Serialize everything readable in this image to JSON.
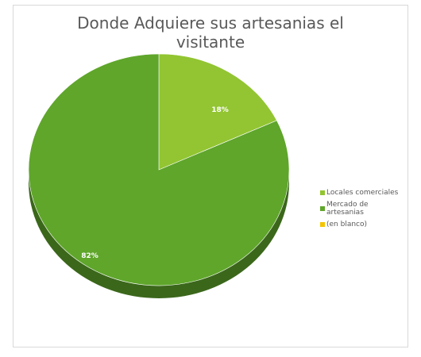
{
  "chart_data": {
    "type": "pie",
    "title": "Donde Adquiere sus artesanias el visitante",
    "title_lines": [
      "Donde Adquiere sus artesanias el",
      "visitante"
    ],
    "categories": [
      "Locales comerciales",
      "Mercado de artesanias",
      "(en blanco)"
    ],
    "values": [
      18,
      82,
      0
    ],
    "data_labels": [
      "18%",
      "82%",
      ""
    ],
    "colors": [
      "#92c531",
      "#5fa62b",
      "#f5c400"
    ],
    "legend_position": "right",
    "style": "3d"
  }
}
